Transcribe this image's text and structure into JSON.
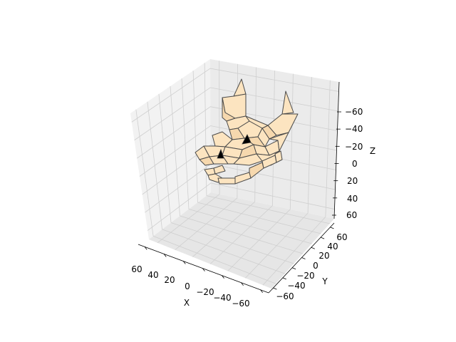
{
  "chart_data": {
    "type": "3d-mesh",
    "title": "",
    "subject": "low-poly bull head",
    "xlabel": "X",
    "ylabel": "Y",
    "zlabel": "Z",
    "xlim": [
      70,
      -70
    ],
    "ylim": [
      -70,
      70
    ],
    "zlim": [
      70,
      -80
    ],
    "x_ticks": [
      "60",
      "40",
      "20",
      "0",
      "−20",
      "−40",
      "−60"
    ],
    "y_ticks": [
      "−60",
      "−40",
      "−20",
      "0",
      "20",
      "40",
      "60"
    ],
    "z_ticks": [
      "−60",
      "−40",
      "−20",
      "0",
      "20",
      "40",
      "60"
    ],
    "grid": true,
    "face_color": "#fce4c0",
    "edge_color": "#4a4a4a"
  }
}
